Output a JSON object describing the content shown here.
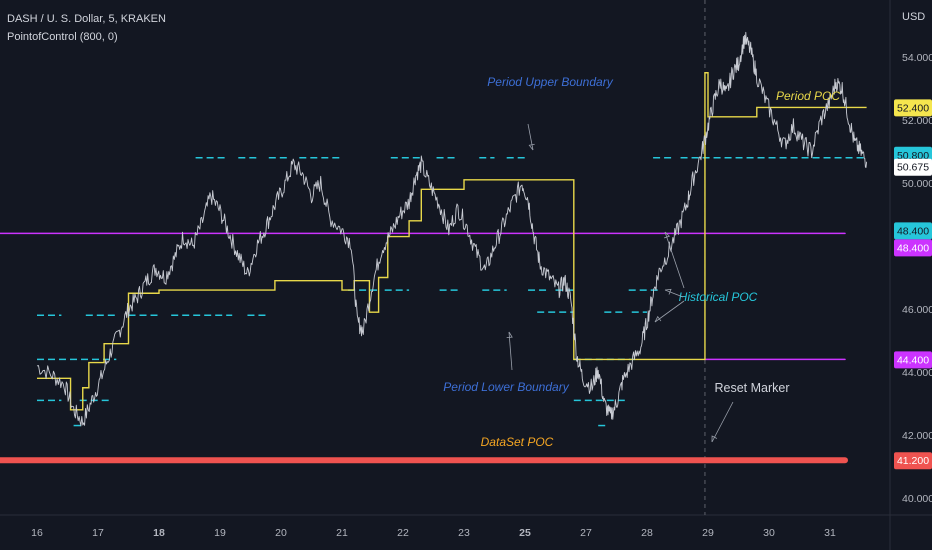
{
  "header": {
    "symbol_line": "DASH / U. S. Dollar, 5, KRAKEN",
    "indicator_line": "PointofControl (800, 0)"
  },
  "currency": "USD",
  "colors": {
    "background": "#131722",
    "price": "#c8cbd3",
    "period_poc": "#e8d84a",
    "boundary": "#26c6da",
    "magenta": "#cc33ff",
    "dataset_poc": "#ef5350",
    "annotation_blue": "#3d6fd6",
    "annotation_cyan": "#26c6da",
    "annotation_orange": "#f5a623",
    "annotation_yellow": "#e8d84a",
    "annotation_white": "#d1d4dc"
  },
  "annotations": {
    "period_upper": "Period Upper Boundary",
    "period_poc": "Period POC",
    "historical_poc": "Historical POC",
    "period_lower": "Period Lower Boundary",
    "reset_marker": "Reset Marker",
    "dataset_poc": "DataSet POC"
  },
  "chart_data": {
    "type": "line",
    "title": "DASH / U. S. Dollar, 5, KRAKEN",
    "ylim": [
      39.2,
      55.4
    ],
    "y_ticks": [
      "54.000",
      "52.000",
      "50.000",
      "48.000",
      "46.000",
      "44.000",
      "42.000",
      "40.000"
    ],
    "x_ticks": [
      "16",
      "17",
      "18",
      "19",
      "20",
      "21",
      "22",
      "23",
      "25",
      "27",
      "28",
      "29",
      "30",
      "31"
    ],
    "price_labels": [
      {
        "text": "52.400",
        "value": 52.4,
        "bg": "#f5e64e",
        "fg": "#131722"
      },
      {
        "text": "50.800",
        "value": 50.8,
        "bg": "#26c6da",
        "fg": "#131722"
      },
      {
        "text": "50.675",
        "value": 50.675,
        "bg": "#ffffff",
        "fg": "#131722"
      },
      {
        "text": "48.400",
        "value": 48.4,
        "bg": "#26c6da",
        "fg": "#131722"
      },
      {
        "text": "48.400",
        "value": 48.4,
        "bg": "#cc33ff",
        "fg": "#ffffff"
      },
      {
        "text": "44.400",
        "value": 44.4,
        "bg": "#cc33ff",
        "fg": "#ffffff"
      },
      {
        "text": "41.200",
        "value": 41.2,
        "bg": "#ef5350",
        "fg": "#ffffff"
      }
    ],
    "series": [
      {
        "name": "DASH close",
        "color": "#c8cbd3",
        "points": [
          [
            0,
            44.2
          ],
          [
            0.25,
            43.9
          ],
          [
            0.45,
            43.6
          ],
          [
            0.6,
            42.8
          ],
          [
            0.75,
            42.4
          ],
          [
            0.9,
            43.1
          ],
          [
            1.05,
            43.8
          ],
          [
            1.2,
            44.6
          ],
          [
            1.35,
            45.3
          ],
          [
            1.5,
            46.0
          ],
          [
            1.65,
            46.4
          ],
          [
            1.8,
            46.9
          ],
          [
            1.95,
            47.3
          ],
          [
            2.1,
            47.0
          ],
          [
            2.25,
            47.6
          ],
          [
            2.4,
            48.3
          ],
          [
            2.55,
            48.0
          ],
          [
            2.7,
            48.7
          ],
          [
            2.85,
            49.6
          ],
          [
            3.0,
            49.1
          ],
          [
            3.15,
            48.4
          ],
          [
            3.3,
            47.7
          ],
          [
            3.45,
            47.1
          ],
          [
            3.6,
            48.0
          ],
          [
            3.75,
            48.6
          ],
          [
            3.9,
            49.3
          ],
          [
            4.05,
            49.9
          ],
          [
            4.2,
            50.6
          ],
          [
            4.35,
            50.3
          ],
          [
            4.5,
            49.6
          ],
          [
            4.65,
            50.0
          ],
          [
            4.8,
            48.9
          ],
          [
            5.0,
            48.5
          ],
          [
            5.15,
            48.1
          ],
          [
            5.25,
            45.6
          ],
          [
            5.35,
            45.3
          ],
          [
            5.5,
            46.8
          ],
          [
            5.65,
            47.9
          ],
          [
            5.8,
            48.4
          ],
          [
            5.95,
            49.0
          ],
          [
            6.1,
            49.4
          ],
          [
            6.2,
            50.2
          ],
          [
            6.3,
            50.6
          ],
          [
            6.45,
            49.9
          ],
          [
            6.6,
            49.3
          ],
          [
            6.75,
            48.5
          ],
          [
            6.9,
            49.2
          ],
          [
            7.05,
            48.6
          ],
          [
            7.2,
            47.8
          ],
          [
            7.35,
            47.2
          ],
          [
            7.5,
            48.0
          ],
          [
            7.65,
            48.7
          ],
          [
            7.8,
            49.4
          ],
          [
            7.95,
            50.0
          ],
          [
            8.05,
            49.5
          ],
          [
            8.15,
            48.3
          ],
          [
            8.25,
            47.4
          ],
          [
            8.4,
            47.0
          ],
          [
            8.55,
            46.6
          ],
          [
            8.65,
            46.9
          ],
          [
            8.75,
            46.3
          ],
          [
            8.85,
            44.5
          ],
          [
            8.95,
            43.8
          ],
          [
            9.1,
            43.5
          ],
          [
            9.2,
            44.1
          ],
          [
            9.3,
            43.0
          ],
          [
            9.4,
            42.6
          ],
          [
            9.5,
            43.0
          ],
          [
            9.6,
            43.7
          ],
          [
            9.75,
            44.3
          ],
          [
            9.9,
            44.8
          ],
          [
            10.0,
            45.6
          ],
          [
            10.1,
            46.5
          ],
          [
            10.2,
            47.2
          ],
          [
            10.35,
            47.8
          ],
          [
            10.5,
            48.5
          ],
          [
            10.65,
            49.3
          ],
          [
            10.75,
            50.1
          ],
          [
            10.9,
            51.0
          ],
          [
            11.0,
            51.8
          ],
          [
            11.1,
            52.6
          ],
          [
            11.2,
            53.2
          ],
          [
            11.3,
            52.8
          ],
          [
            11.4,
            53.5
          ],
          [
            11.5,
            53.8
          ],
          [
            11.6,
            54.6
          ],
          [
            11.7,
            54.2
          ],
          [
            11.8,
            53.4
          ],
          [
            11.95,
            52.6
          ],
          [
            12.1,
            51.9
          ],
          [
            12.25,
            51.2
          ],
          [
            12.4,
            51.8
          ],
          [
            12.55,
            51.3
          ],
          [
            12.7,
            51.0
          ],
          [
            12.85,
            52.0
          ],
          [
            13.0,
            52.6
          ],
          [
            13.1,
            53.2
          ],
          [
            13.2,
            53.0
          ],
          [
            13.3,
            52.1
          ],
          [
            13.4,
            51.3
          ],
          [
            13.5,
            51.0
          ],
          [
            13.6,
            50.675
          ]
        ]
      },
      {
        "name": "Period POC",
        "color": "#e8d84a",
        "points": [
          [
            0,
            43.8
          ],
          [
            0.55,
            43.8
          ],
          [
            0.55,
            42.8
          ],
          [
            0.75,
            42.8
          ],
          [
            0.75,
            43.5
          ],
          [
            0.85,
            43.5
          ],
          [
            0.85,
            44.3
          ],
          [
            1.1,
            44.3
          ],
          [
            1.1,
            44.9
          ],
          [
            1.5,
            44.9
          ],
          [
            1.5,
            46.5
          ],
          [
            2.0,
            46.5
          ],
          [
            2.0,
            46.6
          ],
          [
            3.9,
            46.6
          ],
          [
            3.9,
            46.9
          ],
          [
            5.0,
            46.9
          ],
          [
            5.0,
            46.6
          ],
          [
            5.2,
            46.6
          ],
          [
            5.2,
            46.9
          ],
          [
            5.45,
            46.9
          ],
          [
            5.45,
            45.9
          ],
          [
            5.6,
            45.9
          ],
          [
            5.6,
            47.0
          ],
          [
            5.75,
            47.0
          ],
          [
            5.75,
            48.3
          ],
          [
            6.1,
            48.3
          ],
          [
            6.1,
            48.8
          ],
          [
            6.3,
            48.8
          ],
          [
            6.3,
            49.8
          ],
          [
            7.0,
            49.8
          ],
          [
            7.0,
            50.1
          ],
          [
            8.8,
            50.1
          ],
          [
            8.8,
            44.4
          ],
          [
            10.95,
            44.4
          ],
          [
            10.95,
            53.5
          ],
          [
            11.0,
            53.5
          ],
          [
            11.0,
            52.1
          ],
          [
            11.8,
            52.1
          ],
          [
            11.8,
            52.4
          ],
          [
            13.6,
            52.4
          ]
        ]
      },
      {
        "name": "Boundary segments",
        "color": "#26c6da",
        "segments": [
          [
            2.6,
            3.1,
            50.8
          ],
          [
            3.3,
            3.6,
            50.8
          ],
          [
            3.8,
            4.1,
            50.8
          ],
          [
            4.3,
            5.0,
            50.8
          ],
          [
            5.8,
            6.3,
            50.8
          ],
          [
            6.55,
            6.9,
            50.8
          ],
          [
            7.25,
            7.5,
            50.8
          ],
          [
            7.7,
            8.0,
            50.8
          ],
          [
            10.1,
            10.4,
            50.8
          ],
          [
            10.55,
            13.6,
            50.8
          ],
          [
            0,
            0.4,
            45.8
          ],
          [
            0.8,
            1.3,
            45.8
          ],
          [
            1.5,
            2.0,
            45.8
          ],
          [
            2.2,
            3.2,
            45.8
          ],
          [
            3.45,
            3.8,
            45.8
          ],
          [
            5.1,
            5.6,
            46.6
          ],
          [
            5.7,
            6.1,
            46.6
          ],
          [
            6.6,
            6.9,
            46.6
          ],
          [
            7.3,
            7.7,
            46.6
          ],
          [
            8.05,
            8.4,
            46.6
          ],
          [
            8.5,
            8.8,
            46.6
          ],
          [
            9.7,
            10.2,
            46.6
          ],
          [
            8.2,
            8.8,
            45.9
          ],
          [
            9.3,
            9.6,
            45.9
          ],
          [
            9.75,
            10.0,
            45.9
          ],
          [
            0,
            1.3,
            44.4
          ],
          [
            8.8,
            9.8,
            44.4
          ],
          [
            0,
            0.4,
            43.1
          ],
          [
            0.7,
            1.2,
            43.1
          ],
          [
            8.8,
            9.7,
            43.1
          ],
          [
            0.6,
            0.75,
            42.3
          ],
          [
            9.2,
            9.35,
            42.3
          ]
        ]
      }
    ],
    "horizontal_lines": [
      {
        "name": "Historical POC upper",
        "value": 48.4,
        "color": "#cc33ff"
      },
      {
        "name": "Historical POC lower",
        "value": 44.4,
        "color": "#cc33ff",
        "from": 10.95
      },
      {
        "name": "DataSet POC",
        "value": 41.2,
        "color": "#ef5350"
      }
    ],
    "reset_marker_x": 10.95,
    "grid": false,
    "legend": "none"
  }
}
